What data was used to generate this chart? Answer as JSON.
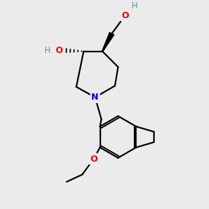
{
  "background_color": "#ebebeb",
  "atom_colors": {
    "N": "#0000ee",
    "O": "#ee0000",
    "H_teal": "#4a9898",
    "C": "#000000"
  },
  "line_width": 1.6,
  "figsize": [
    3.0,
    3.0
  ],
  "dpi": 100,
  "xlim": [
    0,
    10
  ],
  "ylim": [
    0,
    10
  ]
}
